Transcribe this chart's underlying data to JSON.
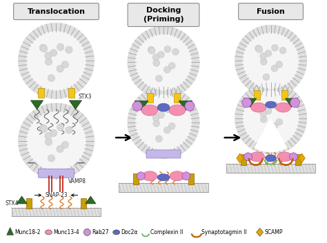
{
  "title_translocation": "Translocation",
  "title_docking": "Docking\n(Priming)",
  "title_fusion": "Fusion",
  "bg_color": "#ffffff",
  "stx3_color": "#f5c518",
  "stx4_color": "#c8a000",
  "vamp8_color": "#c0392b",
  "snap23_color": "#e07820",
  "munc18_color": "#2d6a27",
  "munc13_color": "#f48fb1",
  "rab27_color": "#ce93d8",
  "doc2a_color": "#5c6bc0",
  "complexin_color": "#66bb6a",
  "synapto_color": "#bf5e00",
  "scamp_color": "#e6a800",
  "lavender_color": "#c5b8e8",
  "lavender_border": "#8a79c8",
  "membrane_fill": "#e0e0e0",
  "membrane_inner": "#f5f5f5",
  "membrane_tick": "#aaaaaa",
  "granule_hatch_color": "#b0b0b0",
  "title_fontsize": 8,
  "label_fontsize": 5.5,
  "legend_fontsize": 5.5
}
